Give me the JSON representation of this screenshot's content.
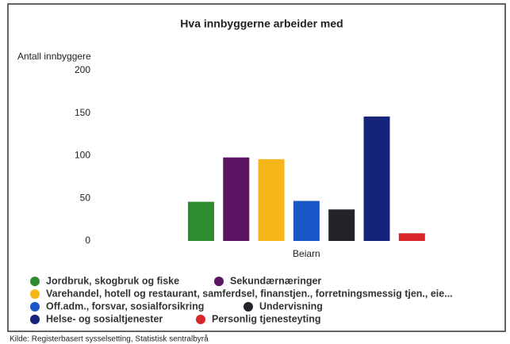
{
  "chart_data": {
    "type": "bar",
    "title": "Hva innbyggerne arbeider med",
    "y_axis_label": "Antall innbyggere",
    "source": "Kilde: Registerbasert sysselsetting, Statistisk sentralbyrå",
    "categories": [
      "Beiarn"
    ],
    "series": [
      {
        "name": "Jordbruk, skogbruk og fiske",
        "color": "#2e8b2e",
        "values": [
          46
        ]
      },
      {
        "name": "Sekundærnæringer",
        "color": "#5b1464",
        "values": [
          98
        ]
      },
      {
        "name": "Varehandel, hotell og restaurant, samferdsel, finanstjen., forretningsmessig tjen., eie...",
        "color": "#f6b619",
        "values": [
          96
        ]
      },
      {
        "name": "Off.adm., forsvar, sosialforsikring",
        "color": "#1a56c8",
        "values": [
          47
        ]
      },
      {
        "name": "Undervisning",
        "color": "#222428",
        "values": [
          37
        ]
      },
      {
        "name": "Helse- og sosialtjenester",
        "color": "#16237a",
        "values": [
          146
        ]
      },
      {
        "name": "Personlig tjenesteyting",
        "color": "#d8262c",
        "values": [
          9
        ]
      }
    ],
    "ylim": [
      0,
      200
    ],
    "yticks": [
      0,
      50,
      100,
      150,
      200
    ],
    "grid": false,
    "legend": "bottom"
  }
}
